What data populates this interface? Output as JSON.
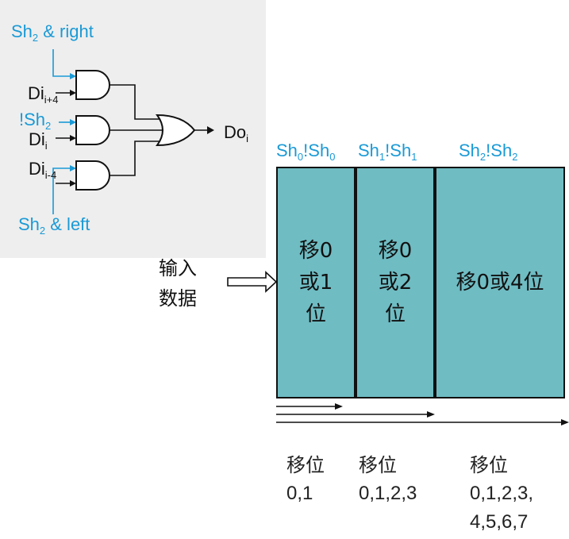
{
  "circuit": {
    "sh2_right": {
      "main": "Sh",
      "sub": "2",
      "rest": " & right"
    },
    "di_plus4": {
      "main": "Di",
      "sub": "i+4"
    },
    "not_sh2": {
      "main": "!Sh",
      "sub": "2"
    },
    "di_i": {
      "main": "Di",
      "sub": "i"
    },
    "di_minus4": {
      "main": "Di",
      "sub": "i-4"
    },
    "sh2_left": {
      "main": "Sh",
      "sub": "2",
      "rest": " & left"
    },
    "do_i": {
      "main": "Do",
      "sub": "i"
    }
  },
  "input_label": {
    "line1": "输入",
    "line2": "数据"
  },
  "controls": {
    "c0": {
      "a": "Sh",
      "a_sub": "0",
      "b": "!Sh",
      "b_sub": "0"
    },
    "c1": {
      "a": "Sh",
      "a_sub": "1",
      "b": "!Sh",
      "b_sub": "1"
    },
    "c2": {
      "a": "Sh",
      "a_sub": "2",
      "b": "!Sh",
      "b_sub": "2"
    }
  },
  "blocks": [
    {
      "line1": "移0",
      "line2": "或1",
      "line3": "位"
    },
    {
      "line1": "移0",
      "line2": "或2",
      "line3": "位"
    },
    {
      "text": "移0或4位"
    }
  ],
  "shift_labels": [
    {
      "title": "移位",
      "values": "0,1"
    },
    {
      "title": "移位",
      "values": "0,1,2,3"
    },
    {
      "title": "移位",
      "values_line1": "0,1,2,3,",
      "values_line2": "4,5,6,7"
    }
  ],
  "colors": {
    "accent": "#1a9ad6",
    "block_fill": "#6fbcc3",
    "panel": "#eeeeee"
  }
}
